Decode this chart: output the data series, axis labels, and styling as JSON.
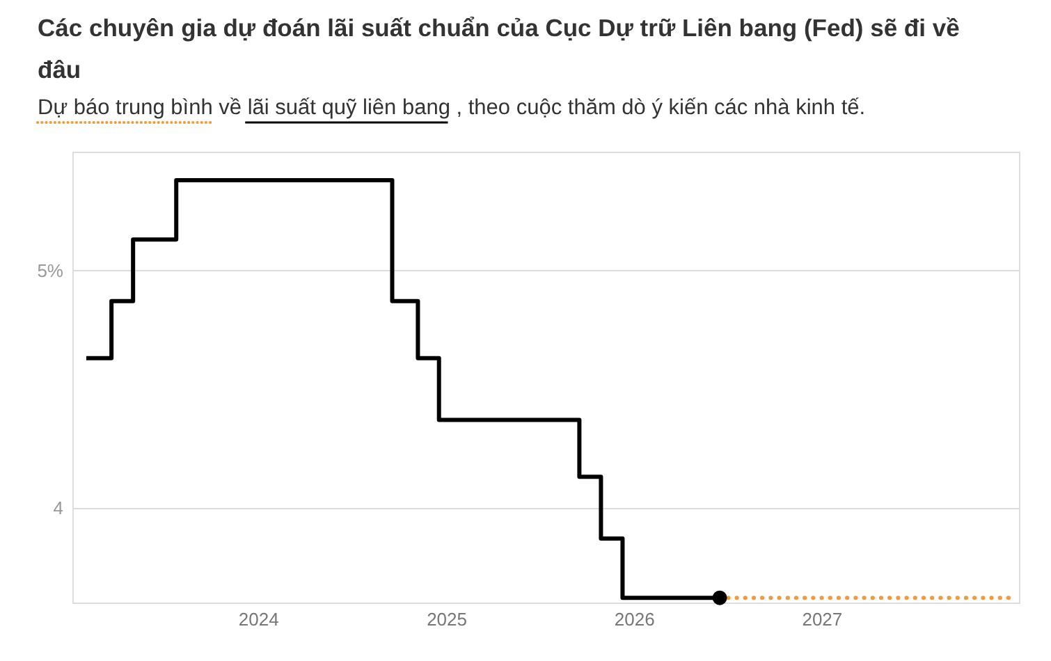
{
  "chart_data": {
    "type": "step",
    "title": "Các chuyên gia dự đoán lãi suất chuẩn của Cục Dự trữ Liên bang (Fed) sẽ đi về đâu",
    "subtitle": "Dự báo trung bình về lãi suất quỹ liên bang , theo cuộc thăm dò ý kiến các nhà kinh tế.",
    "series": [
      {
        "color": "#000000",
        "x": [
          "2023-02-01",
          "2023-03-22",
          "2023-05-03",
          "2023-07-26",
          "2024-09-18",
          "2024-11-07",
          "2024-12-18",
          "2025-09-17",
          "2025-10-29",
          "2025-12-10",
          "2026-06-17"
        ],
        "values": [
          4.63,
          4.87,
          5.13,
          5.38,
          4.87,
          4.63,
          4.37,
          4.13,
          3.87,
          3.62,
          3.62
        ]
      },
      {
        "type": "line",
        "line_style": "dotted",
        "color": "#f29b38",
        "x": [
          "2026-06-17",
          "2027-12-31"
        ],
        "values": [
          3.62,
          3.62
        ]
      },
      {
        "type": "scatter",
        "color": "#000000",
        "x": [
          "2026-06-17"
        ],
        "values": [
          3.62
        ]
      }
    ],
    "xlim": [
      "2023-01-05",
      "2028-01-20"
    ],
    "xticks": [
      "2024",
      "2025",
      "2026",
      "2027"
    ],
    "ylim": [
      3.6,
      5.5
    ],
    "yticks": [
      {
        "value": 5,
        "label": "5%"
      },
      4
    ],
    "grid": "y"
  }
}
